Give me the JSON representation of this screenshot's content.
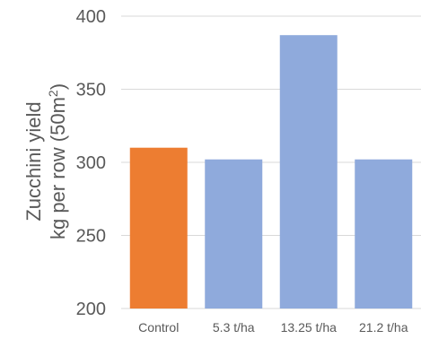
{
  "chart_data": {
    "type": "bar",
    "categories": [
      "Control",
      "5.3 t/ha",
      "13.25 t/ha",
      "21.2 t/ha"
    ],
    "values": [
      310,
      302,
      387,
      302
    ],
    "bar_colors": [
      "#ed7d31",
      "#8faadc",
      "#8faadc",
      "#8faadc"
    ],
    "ylabel_line1": "Zucchini  yield",
    "ylabel_line2_prefix": "kg per row (50m",
    "ylabel_line2_superscript": "2",
    "ylabel_line2_suffix": ")",
    "ylim": [
      200,
      400
    ],
    "yticks": [
      200,
      250,
      300,
      350,
      400
    ],
    "ytick_labels": [
      "200",
      "250",
      "300",
      "350",
      "400"
    ],
    "grid": true
  }
}
